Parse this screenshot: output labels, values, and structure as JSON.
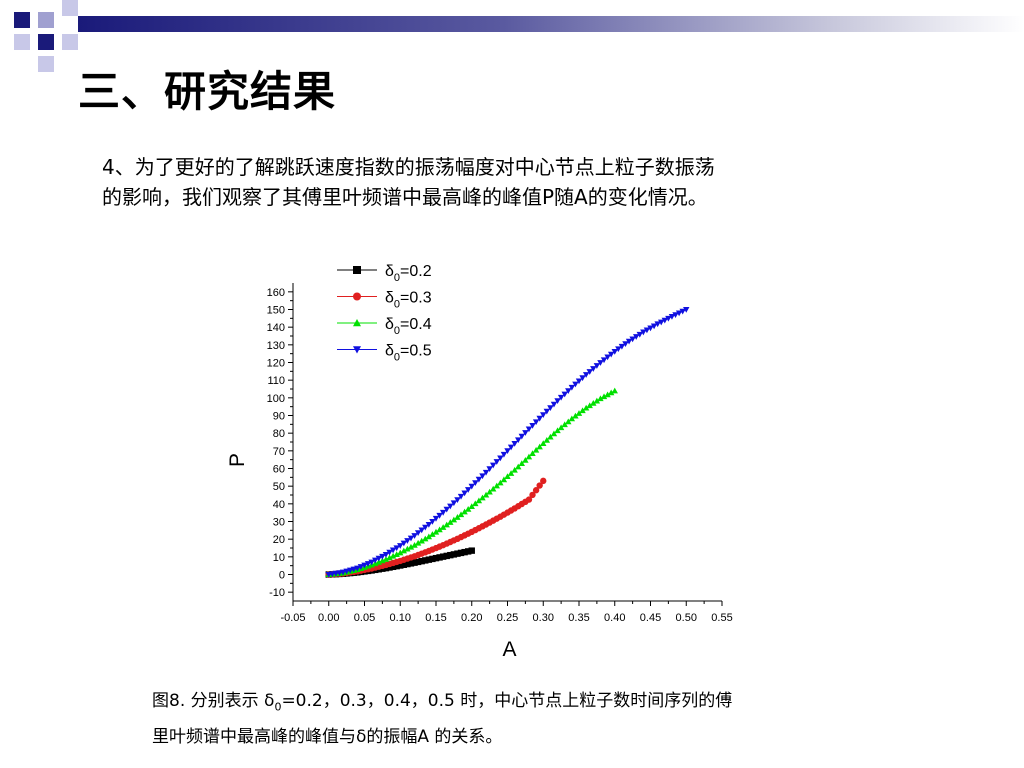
{
  "slide": {
    "title": "三、研究结果",
    "paragraph_lines": [
      "4、为了更好的了解跳跃速度指数的振荡幅度对中心节点上粒子数振荡",
      "的影响，我们观察了其傅里叶频谱中最高峰的峰值P随A的变化情况。"
    ],
    "caption_lines": [
      "图8. 分别表示 δ",
      "0",
      "=0.2，0.3，0.4，0.5 时，中心节点上粒子数时间序列的傅",
      "里叶频谱中最高峰的峰值与δ的振幅A 的关系。"
    ]
  },
  "chart_data": {
    "type": "scatter",
    "xlabel": "A",
    "ylabel": "P",
    "xlim": [
      -0.05,
      0.55
    ],
    "ylim": [
      -15,
      165
    ],
    "x_ticks": [
      "-0.05",
      "0.00",
      "0.05",
      "0.10",
      "0.15",
      "0.20",
      "0.25",
      "0.30",
      "0.35",
      "0.40",
      "0.45",
      "0.50",
      "0.55"
    ],
    "y_ticks": [
      "-10",
      "0",
      "10",
      "20",
      "30",
      "40",
      "50",
      "60",
      "70",
      "80",
      "90",
      "100",
      "110",
      "120",
      "130",
      "140",
      "150",
      "160"
    ],
    "legend_position": "top-left",
    "series": [
      {
        "name": "δ0=0.2",
        "legend_symbol": "δ",
        "legend_sub": "0",
        "legend_value": "=0.2",
        "color": "#000000",
        "marker": "square",
        "points": [
          [
            0.0,
            0
          ],
          [
            0.02,
            0.4
          ],
          [
            0.04,
            1.2
          ],
          [
            0.06,
            2.3
          ],
          [
            0.08,
            3.6
          ],
          [
            0.1,
            5.1
          ],
          [
            0.12,
            6.7
          ],
          [
            0.14,
            8.4
          ],
          [
            0.16,
            10.1
          ],
          [
            0.18,
            11.8
          ],
          [
            0.2,
            13.5
          ]
        ]
      },
      {
        "name": "δ0=0.3",
        "legend_symbol": "δ",
        "legend_sub": "0",
        "legend_value": "=0.3",
        "color": "#e02020",
        "marker": "circle",
        "points": [
          [
            0.0,
            0
          ],
          [
            0.02,
            0.6
          ],
          [
            0.04,
            1.8
          ],
          [
            0.06,
            3.4
          ],
          [
            0.08,
            5.4
          ],
          [
            0.1,
            7.7
          ],
          [
            0.12,
            10.3
          ],
          [
            0.14,
            13.3
          ],
          [
            0.16,
            16.6
          ],
          [
            0.18,
            20.2
          ],
          [
            0.2,
            24.1
          ],
          [
            0.22,
            28.3
          ],
          [
            0.24,
            32.7
          ],
          [
            0.26,
            37.4
          ],
          [
            0.28,
            42.4
          ],
          [
            0.3,
            53
          ]
        ]
      },
      {
        "name": "δ0=0.4",
        "legend_symbol": "δ",
        "legend_sub": "0",
        "legend_value": "=0.4",
        "color": "#00e000",
        "marker": "triangle-up",
        "points": [
          [
            0.0,
            0
          ],
          [
            0.02,
            0.9
          ],
          [
            0.04,
            2.8
          ],
          [
            0.06,
            5.4
          ],
          [
            0.08,
            8.6
          ],
          [
            0.1,
            12.3
          ],
          [
            0.12,
            16.6
          ],
          [
            0.14,
            21.4
          ],
          [
            0.16,
            26.7
          ],
          [
            0.18,
            32.4
          ],
          [
            0.2,
            38.5
          ],
          [
            0.22,
            45
          ],
          [
            0.24,
            51.9
          ],
          [
            0.26,
            59.1
          ],
          [
            0.28,
            66.6
          ],
          [
            0.3,
            74.2
          ],
          [
            0.32,
            81.5
          ],
          [
            0.34,
            88.2
          ],
          [
            0.36,
            94.3
          ],
          [
            0.38,
            99.6
          ],
          [
            0.4,
            104
          ]
        ]
      },
      {
        "name": "δ0=0.5",
        "legend_symbol": "δ",
        "legend_sub": "0",
        "legend_value": "=0.5",
        "color": "#1010e0",
        "marker": "triangle-down",
        "points": [
          [
            0.0,
            0
          ],
          [
            0.02,
            1.3
          ],
          [
            0.04,
            3.6
          ],
          [
            0.06,
            7
          ],
          [
            0.08,
            11.3
          ],
          [
            0.1,
            16.3
          ],
          [
            0.12,
            22
          ],
          [
            0.14,
            28.3
          ],
          [
            0.16,
            35.1
          ],
          [
            0.18,
            42.3
          ],
          [
            0.2,
            49.9
          ],
          [
            0.22,
            57.8
          ],
          [
            0.24,
            65.9
          ],
          [
            0.26,
            74.1
          ],
          [
            0.28,
            82.3
          ],
          [
            0.3,
            90.4
          ],
          [
            0.32,
            98.3
          ],
          [
            0.34,
            105.9
          ],
          [
            0.36,
            113.1
          ],
          [
            0.38,
            119.9
          ],
          [
            0.4,
            126.2
          ],
          [
            0.42,
            132
          ],
          [
            0.44,
            137.2
          ],
          [
            0.46,
            141.8
          ],
          [
            0.48,
            146
          ],
          [
            0.5,
            150
          ]
        ]
      }
    ]
  }
}
